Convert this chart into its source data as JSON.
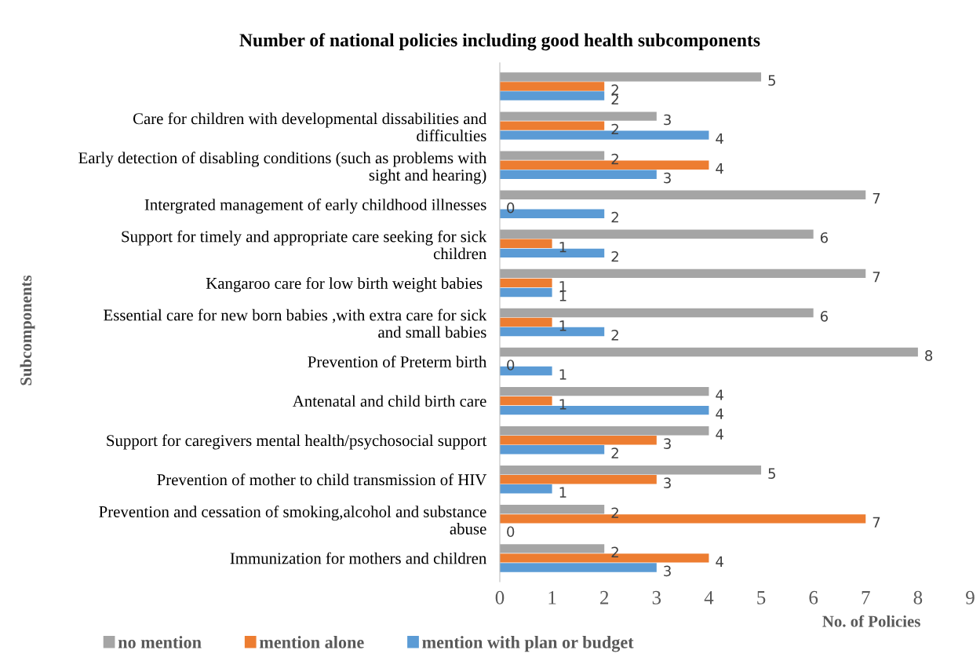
{
  "chart_data": {
    "type": "bar",
    "orientation": "horizontal",
    "title": "Number of national policies including good health subcomponents",
    "xlabel": "No. of Policies",
    "ylabel": "Subcomponents",
    "categories": [
      null,
      "Care for children with developmental dissabilities and\ndifficulties",
      "Early detection of disabling conditions (such as problems with\nsight and hearing)",
      "Intergrated management of early childhood illnesses",
      "Support for timely and appropriate care seeking for sick\nchildren",
      "Kangaroo care for low birth weight babies ",
      "Essential care for new born babies ,with extra care for sick\nand small babies",
      "Prevention of Preterm birth",
      "Antenatal and child birth care",
      "Support for caregivers mental health/psychosocial support",
      "Prevention of mother to child transmission of HIV",
      "Prevention and cessation of smoking,alcohol and substance\nabuse",
      "Immunization for mothers and children"
    ],
    "series": [
      {
        "name": "no mention",
        "color": "#a5a5a5",
        "values": [
          5,
          3,
          2,
          7,
          6,
          7,
          6,
          8,
          4,
          4,
          5,
          2,
          2
        ]
      },
      {
        "name": "mention alone",
        "color": "#ed7d31",
        "values": [
          2,
          2,
          4,
          0,
          1,
          1,
          1,
          0,
          1,
          3,
          3,
          7,
          4
        ]
      },
      {
        "name": "mention with plan or budget",
        "color": "#5b9bd5",
        "values": [
          2,
          4,
          3,
          2,
          2,
          1,
          2,
          1,
          4,
          2,
          1,
          0,
          3
        ]
      }
    ],
    "xlim": [
      0,
      9
    ],
    "xticks": [
      0,
      1,
      2,
      3,
      4,
      5,
      6,
      7,
      8,
      9
    ],
    "data_labels": true,
    "legend": "bottom",
    "grid": false
  }
}
